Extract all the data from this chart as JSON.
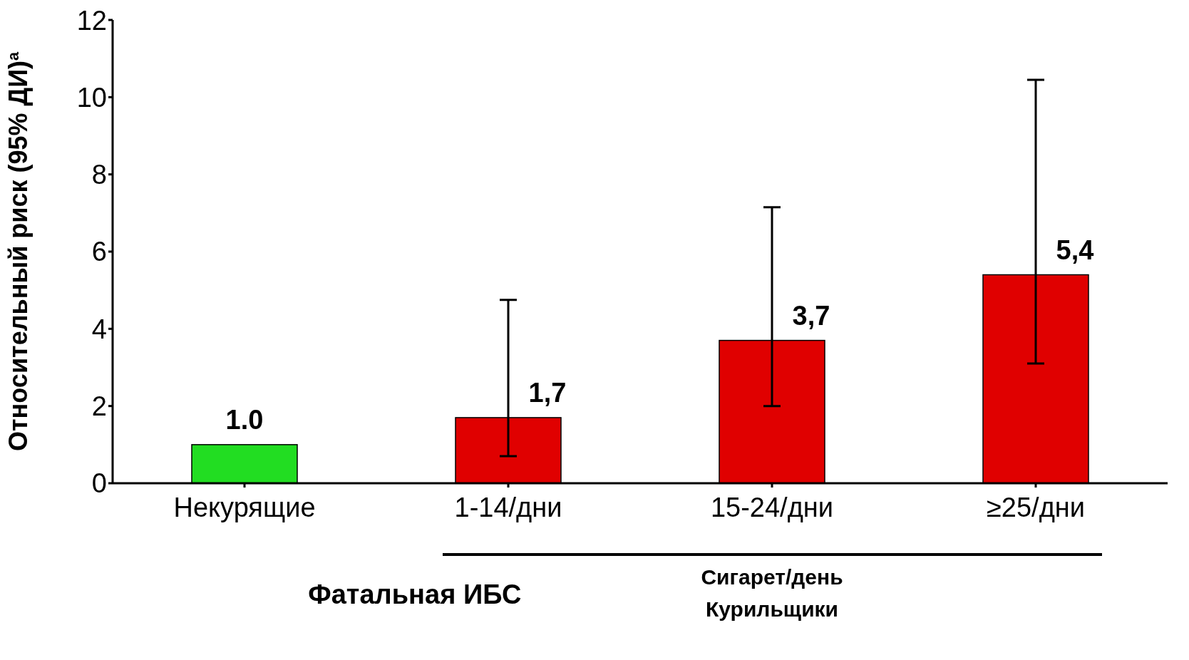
{
  "chart_data": {
    "type": "bar",
    "ylabel": "Относительный риск (95% ДИ)$^{a}$",
    "categories": [
      "Некурящие",
      "1-14/дни",
      "15-24/дни",
      "≥25/дни"
    ],
    "values": [
      1.0,
      1.7,
      3.7,
      5.4
    ],
    "colors": [
      "#22dd22",
      "#e00000",
      "#e00000",
      "#e00000"
    ],
    "errors": [
      null,
      [
        0.7,
        4.75
      ],
      [
        2.0,
        7.15
      ],
      [
        3.1,
        10.45
      ]
    ],
    "value_labels": [
      "1.0",
      "1,7",
      "3,7",
      "5,4"
    ],
    "ylim": [
      0,
      12
    ],
    "yticks": [
      0,
      2,
      4,
      6,
      8,
      10,
      12
    ],
    "grid": false,
    "legend": false,
    "annotations": [
      "Фатальная ИБС",
      "Сигарет/день",
      "Курильщики"
    ]
  }
}
